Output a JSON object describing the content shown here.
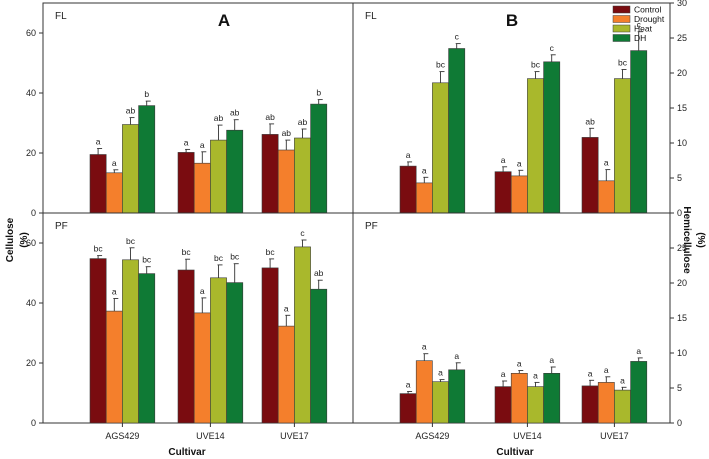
{
  "series_names": [
    "Control",
    "Drought",
    "Heat",
    "DH"
  ],
  "series_colors": [
    "#7a0c10",
    "#f47f2c",
    "#a9b82c",
    "#0f7a35"
  ],
  "axes": {
    "left_ylabel": "Cellulose",
    "left_ylabel_unit": "(%)",
    "right_ylabel": "Hemicellulose",
    "right_ylabel_unit": "(%)",
    "xlabel_left": "Cultivar",
    "xlabel_right": "Cultivar"
  },
  "chart_data": [
    {
      "type": "bar",
      "panel": "A-FL",
      "position": "top-left",
      "tag": "FL",
      "letter": "A",
      "categories": [
        "AGS429",
        "UVE14",
        "UVE17"
      ],
      "ylim": [
        0,
        70
      ],
      "yticks": [
        0,
        20,
        40,
        60
      ],
      "ylabel": "Cellulose (%)",
      "series": [
        {
          "name": "Control",
          "values": [
            19.5,
            20.2,
            26.2
          ],
          "errors": [
            2.0,
            1.0,
            3.5
          ],
          "letters": [
            "a",
            "a",
            "ab"
          ]
        },
        {
          "name": "Drought",
          "values": [
            13.4,
            16.6,
            21.0
          ],
          "errors": [
            1.0,
            3.8,
            3.3
          ],
          "letters": [
            "a",
            "a",
            "ab"
          ]
        },
        {
          "name": "Heat",
          "values": [
            29.5,
            24.3,
            25.0
          ],
          "errors": [
            2.3,
            5.0,
            3.0
          ],
          "letters": [
            "ab",
            "ab",
            "ab"
          ]
        },
        {
          "name": "DH",
          "values": [
            35.8,
            27.6,
            36.3
          ],
          "errors": [
            1.5,
            3.5,
            1.5
          ],
          "letters": [
            "b",
            "ab",
            "b"
          ]
        }
      ]
    },
    {
      "type": "bar",
      "panel": "B-FL",
      "position": "top-right",
      "tag": "FL",
      "letter": "B",
      "categories": [
        "AGS429",
        "UVE14",
        "UVE17"
      ],
      "ylim": [
        0,
        30
      ],
      "yticks": [
        0,
        5,
        10,
        15,
        20,
        25,
        30
      ],
      "ylabel": "Hemicellulose (%)",
      "series": [
        {
          "name": "Control",
          "values": [
            6.7,
            5.9,
            10.8
          ],
          "errors": [
            0.6,
            0.7,
            1.3
          ],
          "letters": [
            "a",
            "a",
            "ab"
          ]
        },
        {
          "name": "Drought",
          "values": [
            4.3,
            5.3,
            4.6
          ],
          "errors": [
            0.8,
            0.8,
            1.6
          ],
          "letters": [
            "a",
            "a",
            "a"
          ]
        },
        {
          "name": "Heat",
          "values": [
            18.6,
            19.2,
            19.2
          ],
          "errors": [
            1.6,
            1.0,
            1.3
          ],
          "letters": [
            "bc",
            "bc",
            "bc"
          ]
        },
        {
          "name": "DH",
          "values": [
            23.5,
            21.6,
            23.2
          ],
          "errors": [
            0.7,
            1.0,
            2.7
          ],
          "letters": [
            "c",
            "c",
            "c"
          ]
        }
      ]
    },
    {
      "type": "bar",
      "panel": "A-PF",
      "position": "bottom-left",
      "tag": "PF",
      "letter": "",
      "categories": [
        "AGS429",
        "UVE14",
        "UVE17"
      ],
      "xlabel": "Cultivar",
      "ylim": [
        0,
        70
      ],
      "yticks": [
        0,
        20,
        40,
        60
      ],
      "ylabel": "Cellulose (%)",
      "series": [
        {
          "name": "Control",
          "values": [
            54.8,
            51.0,
            51.7
          ],
          "errors": [
            1.0,
            3.6,
            3.0
          ],
          "letters": [
            "bc",
            "bc",
            "bc"
          ]
        },
        {
          "name": "Drought",
          "values": [
            37.3,
            36.7,
            32.3
          ],
          "errors": [
            4.2,
            5.0,
            3.6
          ],
          "letters": [
            "a",
            "a",
            "a"
          ]
        },
        {
          "name": "Heat",
          "values": [
            54.4,
            48.4,
            58.7
          ],
          "errors": [
            4.0,
            4.3,
            2.3
          ],
          "letters": [
            "bc",
            "bc",
            "c"
          ]
        },
        {
          "name": "DH",
          "values": [
            49.8,
            46.8,
            44.6
          ],
          "errors": [
            2.3,
            6.3,
            3.0
          ],
          "letters": [
            "bc",
            "bc",
            "ab"
          ]
        }
      ]
    },
    {
      "type": "bar",
      "panel": "B-PF",
      "position": "bottom-right",
      "tag": "PF",
      "letter": "",
      "categories": [
        "AGS429",
        "UVE14",
        "UVE17"
      ],
      "xlabel": "Cultivar",
      "ylim": [
        0,
        30
      ],
      "yticks": [
        0,
        5,
        10,
        15,
        20,
        25
      ],
      "ylabel": "Hemicellulose (%)",
      "series": [
        {
          "name": "Control",
          "values": [
            4.2,
            5.2,
            5.3
          ],
          "errors": [
            0.3,
            0.8,
            0.8
          ],
          "letters": [
            "a",
            "a",
            "a"
          ]
        },
        {
          "name": "Drought",
          "values": [
            8.9,
            7.1,
            5.8
          ],
          "errors": [
            1.0,
            0.4,
            0.8
          ],
          "letters": [
            "a",
            "a",
            "a"
          ]
        },
        {
          "name": "Heat",
          "values": [
            5.9,
            5.2,
            4.7
          ],
          "errors": [
            0.3,
            0.6,
            0.4
          ],
          "letters": [
            "a",
            "a",
            "a"
          ]
        },
        {
          "name": "DH",
          "values": [
            7.6,
            7.1,
            8.8
          ],
          "errors": [
            1.0,
            0.9,
            0.5
          ],
          "letters": [
            "a",
            "a",
            "a"
          ]
        }
      ]
    }
  ]
}
